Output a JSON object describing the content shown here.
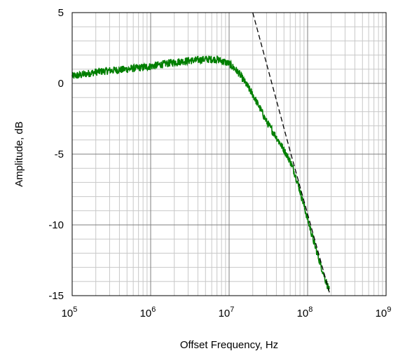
{
  "chart_data": {
    "type": "line",
    "xlabel": "Offset Frequency, Hz",
    "ylabel": "Amplitude, dB",
    "x_scale": "log",
    "xlim": [
      100000,
      1000000000
    ],
    "ylim": [
      -15,
      5
    ],
    "x_ticks": [
      {
        "value": 100000,
        "base": "10",
        "exp": "5"
      },
      {
        "value": 1000000,
        "base": "10",
        "exp": "6"
      },
      {
        "value": 10000000,
        "base": "10",
        "exp": "7"
      },
      {
        "value": 100000000,
        "base": "10",
        "exp": "8"
      },
      {
        "value": 1000000000,
        "base": "10",
        "exp": "9"
      }
    ],
    "y_ticks": [
      {
        "value": 5,
        "label": "5"
      },
      {
        "value": 0,
        "label": "0"
      },
      {
        "value": -5,
        "label": "-5"
      },
      {
        "value": -10,
        "label": "-10"
      },
      {
        "value": -15,
        "label": "-15"
      }
    ],
    "grid": true,
    "series": [
      {
        "color": "#007f00",
        "style": "solid",
        "noisy": true,
        "x": [
          100000,
          130000,
          200000,
          300000,
          500000,
          700000,
          1000000,
          2000000,
          3000000,
          4000000,
          5000000,
          7000000,
          10000000,
          13000000,
          15000000,
          20000000,
          25000000,
          30000000,
          40000000,
          50000000,
          60000000,
          70000000,
          80000000,
          100000000,
          120000000,
          150000000,
          190000000
        ],
        "y": [
          0.5,
          0.6,
          0.8,
          0.9,
          1.0,
          1.1,
          1.2,
          1.5,
          1.6,
          1.65,
          1.7,
          1.7,
          1.4,
          0.8,
          0.3,
          -0.8,
          -1.8,
          -2.7,
          -3.8,
          -4.7,
          -5.5,
          -6.5,
          -7.6,
          -9.6,
          -11.2,
          -13.0,
          -14.7
        ]
      },
      {
        "color": "#000000",
        "style": "dashed",
        "x": [
          20000000,
          60000000,
          190000000
        ],
        "y": [
          5,
          -4.8,
          -14.8
        ]
      }
    ]
  }
}
